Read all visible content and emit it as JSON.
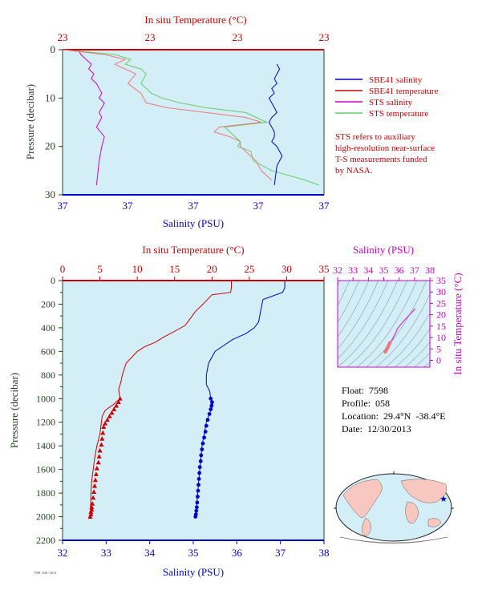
{
  "chart_data": [
    {
      "type": "line",
      "name": "near-surface profile",
      "top_axis": {
        "label": "In situ Temperature (°C)",
        "ticks": [
          "23",
          "23",
          "23",
          "23"
        ]
      },
      "bottom_axis": {
        "label": "Salinity (PSU)",
        "ticks": [
          "37",
          "37",
          "37",
          "37",
          "37"
        ]
      },
      "y_axis": {
        "label": "Pressure (decibar)",
        "ticks": [
          0,
          10,
          20,
          30
        ],
        "ylim": [
          0,
          30
        ],
        "inverted": true
      },
      "legend": {
        "placement": "right",
        "entries": [
          {
            "label": "SBE41 salinity",
            "color": "#0000cc"
          },
          {
            "label": "SBE41 temperature",
            "color": "#cc0000"
          },
          {
            "label": "STS salinity",
            "color": "#cc00cc"
          },
          {
            "label": "STS temperature",
            "color": "#66cc66"
          }
        ]
      },
      "note": [
        "STS refers to auxiliary",
        "high-resolution near-surface",
        "T-S measurements funded",
        "by NASA."
      ],
      "series": [
        {
          "name": "STS salinity",
          "color": "#cc00cc",
          "x": [
            0.06,
            0.07,
            0.09,
            0.11,
            0.1,
            0.12,
            0.11,
            0.13,
            0.14,
            0.15,
            0.14,
            0.16,
            0.15,
            0.14,
            0.15,
            0.13,
            0.16,
            0.15,
            0.14,
            0.13
          ],
          "y": [
            0,
            1,
            2,
            3,
            4,
            5,
            6,
            7,
            8,
            9,
            10,
            11,
            12,
            13,
            14,
            16,
            18,
            20,
            23,
            28
          ]
        },
        {
          "name": "STS temperature",
          "color": "#66cc66",
          "x": [
            0.0,
            0.2,
            0.26,
            0.24,
            0.3,
            0.32,
            0.3,
            0.34,
            0.38,
            0.45,
            0.55,
            0.7,
            0.78,
            0.62,
            0.64,
            0.68,
            0.67,
            0.72,
            0.73,
            0.8,
            0.93,
            0.98
          ],
          "y": [
            0,
            1,
            2,
            3,
            4,
            5,
            7,
            9,
            10,
            11,
            12,
            13,
            15,
            16,
            17,
            19,
            20,
            21,
            23,
            25,
            27,
            28
          ]
        },
        {
          "name": "SBE41 temperature",
          "color": "#ee7777",
          "x": [
            0.0,
            0.16,
            0.24,
            0.2,
            0.28,
            0.25,
            0.3,
            0.32,
            0.4,
            0.55,
            0.7,
            0.76,
            0.6,
            0.58,
            0.64,
            0.68,
            0.68,
            0.72,
            0.74,
            0.76,
            0.8
          ],
          "y": [
            0,
            1,
            2,
            3,
            5,
            7,
            9,
            11,
            12,
            13,
            14,
            15,
            16,
            17,
            18,
            19,
            20,
            22,
            23,
            25,
            27
          ]
        },
        {
          "name": "SBE41 salinity",
          "color": "#0000cc",
          "x": [
            0.82,
            0.83,
            0.82,
            0.81,
            0.82,
            0.8,
            0.81,
            0.79,
            0.8,
            0.81,
            0.82,
            0.8,
            0.79,
            0.8,
            0.81,
            0.81,
            0.8,
            0.82,
            0.84,
            0.82,
            0.81
          ],
          "y": [
            3,
            4,
            5,
            6,
            7,
            8,
            9,
            10,
            11,
            12,
            13,
            14,
            15,
            16,
            17,
            18,
            19,
            20,
            22,
            24,
            28
          ]
        }
      ]
    },
    {
      "type": "line",
      "name": "full profile",
      "top_axis": {
        "label": "In situ Temperature (°C)",
        "ticks": [
          0,
          5,
          10,
          15,
          20,
          25,
          30,
          35
        ],
        "xlim": [
          0,
          35
        ]
      },
      "bottom_axis": {
        "label": "Salinity (PSU)",
        "ticks": [
          32,
          33,
          34,
          35,
          36,
          37,
          38
        ],
        "xlim": [
          32,
          38
        ]
      },
      "y_axis": {
        "label": "Pressure (decibar)",
        "ticks": [
          0,
          200,
          400,
          600,
          800,
          1000,
          1200,
          1400,
          1600,
          1800,
          2000,
          2200
        ],
        "ylim": [
          0,
          2200
        ],
        "inverted": true
      },
      "temperature": {
        "color": "#cc0000",
        "line": {
          "x": [
            22.6,
            22.6,
            22.5,
            20.0,
            18.8,
            17.8,
            17.0,
            16.4,
            15.0,
            13.5,
            12.5,
            11.0,
            10.0,
            8.5,
            8.0,
            7.8,
            7.5,
            7.7,
            6.8,
            5.7,
            5.3,
            5.2,
            5.0,
            4.6,
            4.3,
            4.1,
            3.9,
            3.8,
            3.7
          ],
          "y": [
            0,
            60,
            100,
            120,
            200,
            260,
            330,
            380,
            430,
            480,
            520,
            560,
            600,
            700,
            800,
            860,
            920,
            1000,
            1050,
            1100,
            1150,
            1200,
            1300,
            1400,
            1500,
            1600,
            1700,
            1800,
            2000
          ]
        },
        "markers": {
          "x": [
            7.7,
            7.5,
            7.2,
            6.9,
            6.6,
            6.3,
            6.0,
            5.7,
            5.5,
            5.4,
            5.3,
            5.2,
            5.0,
            4.9,
            4.8,
            4.6,
            4.5,
            4.4,
            4.3,
            4.2,
            4.1,
            4.0,
            3.9,
            3.9,
            3.8,
            3.8,
            3.7
          ],
          "y": [
            1000,
            1030,
            1060,
            1090,
            1120,
            1150,
            1180,
            1210,
            1240,
            1290,
            1340,
            1390,
            1440,
            1490,
            1540,
            1590,
            1640,
            1690,
            1740,
            1790,
            1840,
            1890,
            1920,
            1940,
            1960,
            1980,
            2000
          ]
        }
      },
      "salinity": {
        "color": "#0000cc",
        "line": {
          "x": [
            37.1,
            37.1,
            37.05,
            36.6,
            36.55,
            36.5,
            36.4,
            36.2,
            35.9,
            35.7,
            35.5,
            35.35,
            35.3,
            35.3,
            35.38,
            35.4,
            35.45,
            35.4,
            35.35,
            35.3,
            35.2,
            35.15,
            35.1,
            35.08,
            35.05
          ],
          "y": [
            0,
            60,
            100,
            160,
            250,
            350,
            400,
            450,
            500,
            550,
            600,
            700,
            800,
            880,
            940,
            1000,
            1050,
            1100,
            1150,
            1200,
            1400,
            1600,
            1800,
            1900,
            2000
          ]
        },
        "markers": {
          "x": [
            35.4,
            35.43,
            35.42,
            35.4,
            35.37,
            35.33,
            35.3,
            35.28,
            35.25,
            35.22,
            35.2,
            35.18,
            35.17,
            35.15,
            35.14,
            35.13,
            35.12,
            35.11,
            35.1,
            35.09,
            35.08,
            35.07,
            35.06,
            35.05
          ],
          "y": [
            1000,
            1030,
            1060,
            1090,
            1130,
            1180,
            1230,
            1280,
            1330,
            1380,
            1430,
            1480,
            1530,
            1580,
            1630,
            1680,
            1730,
            1780,
            1830,
            1880,
            1920,
            1950,
            1980,
            2000
          ]
        }
      }
    },
    {
      "type": "scatter",
      "name": "T-S diagram",
      "top_axis": {
        "label": "Salinity (PSU)",
        "ticks": [
          32,
          33,
          34,
          35,
          36,
          37,
          38
        ],
        "xlim": [
          32,
          38
        ]
      },
      "right_axis": {
        "label": "In situ Temperature (°C)",
        "ticks": [
          0,
          5,
          10,
          15,
          20,
          25,
          30,
          35
        ],
        "ylim": [
          -3,
          35
        ]
      },
      "series": [
        {
          "name": "ts",
          "color": "#cc33cc",
          "x": [
            37.05,
            36.6,
            36.2,
            35.9,
            35.7,
            35.5,
            35.4,
            35.35,
            35.3,
            35.25,
            35.2,
            35.1
          ],
          "y": [
            22.6,
            19.5,
            16.5,
            14.0,
            11.0,
            8.5,
            7.7,
            6.8,
            5.7,
            5.2,
            4.5,
            3.7
          ]
        },
        {
          "name": "deep points",
          "color": "#ee7777",
          "x": [
            35.4,
            35.35,
            35.3,
            35.25,
            35.2,
            35.15,
            35.1
          ],
          "y": [
            7.7,
            7.0,
            6.2,
            5.5,
            5.0,
            4.3,
            3.7
          ]
        }
      ]
    }
  ],
  "info": {
    "float": "Float:  7598",
    "profile": "Profile:  058",
    "location": "Location:  29.4°N  -38.4°E",
    "date": "Date:  12/30/2013"
  },
  "colors": {
    "plot_bg": "#d4eef8",
    "temp_axis": "#cc0000",
    "sal_axis": "#0000cc",
    "pres_axis": "#224422",
    "ts_axis": "#cc00cc",
    "land": "#f7c7c0",
    "ocean": "#d4eef8"
  },
  "map": {
    "marker_icon": "star-icon"
  }
}
